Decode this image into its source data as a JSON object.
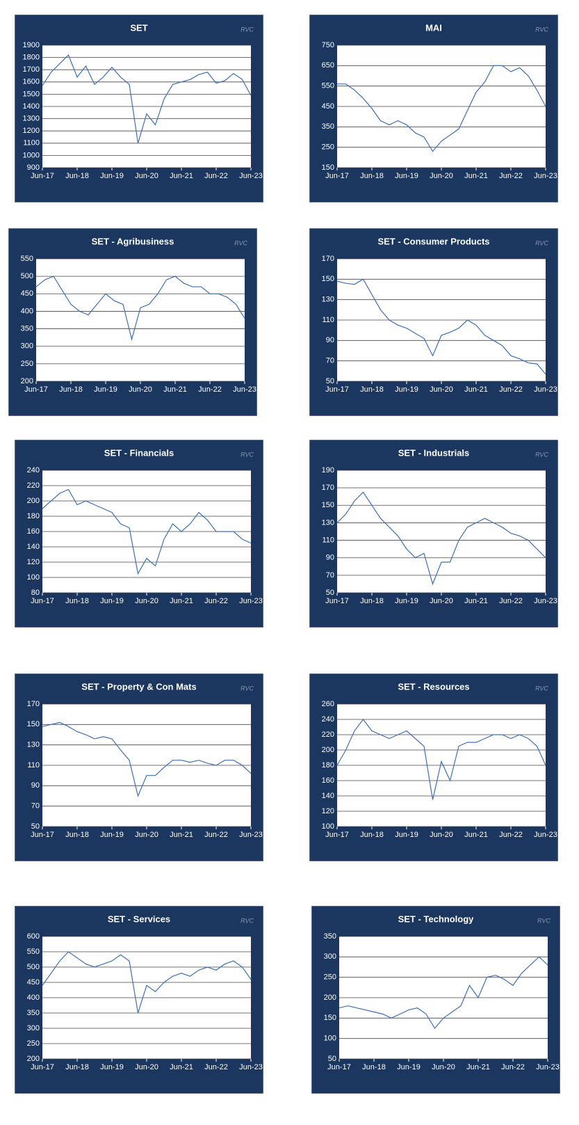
{
  "chart_data": [
    {
      "type": "line",
      "title": "SET",
      "watermark": "RVC",
      "color": "#3c6fb6",
      "grid": true,
      "x": [
        "Jun-17",
        "Sep-17",
        "Dec-17",
        "Mar-18",
        "Jun-18",
        "Sep-18",
        "Dec-18",
        "Mar-19",
        "Jun-19",
        "Sep-19",
        "Dec-19",
        "Mar-20",
        "Jun-20",
        "Sep-20",
        "Dec-20",
        "Mar-21",
        "Jun-21",
        "Sep-21",
        "Dec-21",
        "Mar-22",
        "Jun-22",
        "Sep-22",
        "Dec-22",
        "Mar-23",
        "Jun-23"
      ],
      "xticks": [
        "Jun-17",
        "Jun-18",
        "Jun-19",
        "Jun-20",
        "Jun-21",
        "Jun-22",
        "Jun-23"
      ],
      "values": [
        1570,
        1680,
        1750,
        1820,
        1640,
        1730,
        1580,
        1640,
        1720,
        1640,
        1580,
        1100,
        1340,
        1250,
        1460,
        1580,
        1600,
        1620,
        1660,
        1680,
        1590,
        1610,
        1670,
        1620,
        1490
      ],
      "ylim": [
        900,
        1900
      ],
      "yticks": [
        900,
        1000,
        1100,
        1200,
        1300,
        1400,
        1500,
        1600,
        1700,
        1800,
        1900
      ]
    },
    {
      "type": "line",
      "title": "MAI",
      "watermark": "RVC",
      "color": "#3c6fb6",
      "grid": true,
      "x": [
        "Jun-17",
        "Sep-17",
        "Dec-17",
        "Mar-18",
        "Jun-18",
        "Sep-18",
        "Dec-18",
        "Mar-19",
        "Jun-19",
        "Sep-19",
        "Dec-19",
        "Mar-20",
        "Jun-20",
        "Sep-20",
        "Dec-20",
        "Mar-21",
        "Jun-21",
        "Sep-21",
        "Dec-21",
        "Mar-22",
        "Jun-22",
        "Sep-22",
        "Dec-22",
        "Mar-23",
        "Jun-23"
      ],
      "xticks": [
        "Jun-17",
        "Jun-18",
        "Jun-19",
        "Jun-20",
        "Jun-21",
        "Jun-22",
        "Jun-23"
      ],
      "values": [
        560,
        560,
        530,
        490,
        440,
        380,
        360,
        380,
        360,
        320,
        300,
        230,
        280,
        310,
        340,
        430,
        520,
        570,
        650,
        650,
        620,
        640,
        600,
        530,
        450
      ],
      "ylim": [
        150,
        750
      ],
      "yticks": [
        150,
        250,
        350,
        450,
        550,
        650,
        750
      ]
    },
    {
      "type": "line",
      "title": "SET - Agribusiness",
      "watermark": "RVC",
      "color": "#3c6fb6",
      "grid": true,
      "x": [
        "Jun-17",
        "Sep-17",
        "Dec-17",
        "Mar-18",
        "Jun-18",
        "Sep-18",
        "Dec-18",
        "Mar-19",
        "Jun-19",
        "Sep-19",
        "Dec-19",
        "Mar-20",
        "Jun-20",
        "Sep-20",
        "Dec-20",
        "Mar-21",
        "Jun-21",
        "Sep-21",
        "Dec-21",
        "Mar-22",
        "Jun-22",
        "Sep-22",
        "Dec-22",
        "Mar-23",
        "Jun-23"
      ],
      "xticks": [
        "Jun-17",
        "Jun-18",
        "Jun-19",
        "Jun-20",
        "Jun-21",
        "Jun-22",
        "Jun-23"
      ],
      "values": [
        470,
        490,
        500,
        460,
        420,
        400,
        390,
        420,
        450,
        430,
        420,
        320,
        410,
        420,
        450,
        490,
        500,
        480,
        470,
        470,
        450,
        450,
        440,
        420,
        380
      ],
      "ylim": [
        200,
        550
      ],
      "yticks": [
        200,
        250,
        300,
        350,
        400,
        450,
        500,
        550
      ]
    },
    {
      "type": "line",
      "title": "SET - Consumer Products",
      "watermark": "RVC",
      "color": "#3c6fb6",
      "grid": true,
      "x": [
        "Jun-17",
        "Sep-17",
        "Dec-17",
        "Mar-18",
        "Jun-18",
        "Sep-18",
        "Dec-18",
        "Mar-19",
        "Jun-19",
        "Sep-19",
        "Dec-19",
        "Mar-20",
        "Jun-20",
        "Sep-20",
        "Dec-20",
        "Mar-21",
        "Jun-21",
        "Sep-21",
        "Dec-21",
        "Mar-22",
        "Jun-22",
        "Sep-22",
        "Dec-22",
        "Mar-23",
        "Jun-23"
      ],
      "xticks": [
        "Jun-17",
        "Jun-18",
        "Jun-19",
        "Jun-20",
        "Jun-21",
        "Jun-22",
        "Jun-23"
      ],
      "values": [
        148,
        146,
        145,
        150,
        135,
        120,
        110,
        105,
        102,
        97,
        92,
        75,
        95,
        98,
        102,
        110,
        105,
        95,
        90,
        85,
        75,
        72,
        68,
        67,
        57
      ],
      "ylim": [
        50,
        170
      ],
      "yticks": [
        50,
        70,
        90,
        110,
        130,
        150,
        170
      ]
    },
    {
      "type": "line",
      "title": "SET - Financials",
      "watermark": "RVC",
      "color": "#3c6fb6",
      "grid": true,
      "x": [
        "Jun-17",
        "Sep-17",
        "Dec-17",
        "Mar-18",
        "Jun-18",
        "Sep-18",
        "Dec-18",
        "Mar-19",
        "Jun-19",
        "Sep-19",
        "Dec-19",
        "Mar-20",
        "Jun-20",
        "Sep-20",
        "Dec-20",
        "Mar-21",
        "Jun-21",
        "Sep-21",
        "Dec-21",
        "Mar-22",
        "Jun-22",
        "Sep-22",
        "Dec-22",
        "Mar-23",
        "Jun-23"
      ],
      "xticks": [
        "Jun-17",
        "Jun-18",
        "Jun-19",
        "Jun-20",
        "Jun-21",
        "Jun-22",
        "Jun-23"
      ],
      "values": [
        190,
        200,
        210,
        215,
        195,
        200,
        195,
        190,
        185,
        170,
        165,
        105,
        125,
        115,
        150,
        170,
        160,
        170,
        185,
        175,
        160,
        160,
        160,
        150,
        145
      ],
      "ylim": [
        80,
        240
      ],
      "yticks": [
        80,
        100,
        120,
        140,
        160,
        180,
        200,
        220,
        240
      ]
    },
    {
      "type": "line",
      "title": "SET - Industrials",
      "watermark": "RVC",
      "color": "#3c6fb6",
      "grid": true,
      "x": [
        "Jun-17",
        "Sep-17",
        "Dec-17",
        "Mar-18",
        "Jun-18",
        "Sep-18",
        "Dec-18",
        "Mar-19",
        "Jun-19",
        "Sep-19",
        "Dec-19",
        "Mar-20",
        "Jun-20",
        "Sep-20",
        "Dec-20",
        "Mar-21",
        "Jun-21",
        "Sep-21",
        "Dec-21",
        "Mar-22",
        "Jun-22",
        "Sep-22",
        "Dec-22",
        "Mar-23",
        "Jun-23"
      ],
      "xticks": [
        "Jun-17",
        "Jun-18",
        "Jun-19",
        "Jun-20",
        "Jun-21",
        "Jun-22",
        "Jun-23"
      ],
      "values": [
        130,
        140,
        155,
        165,
        150,
        135,
        125,
        115,
        100,
        90,
        95,
        60,
        85,
        85,
        110,
        125,
        130,
        135,
        130,
        125,
        118,
        115,
        110,
        100,
        90
      ],
      "ylim": [
        50,
        190
      ],
      "yticks": [
        50,
        70,
        90,
        110,
        130,
        150,
        170,
        190
      ]
    },
    {
      "type": "line",
      "title": "SET - Property & Con Mats",
      "watermark": "RVC",
      "color": "#3c6fb6",
      "grid": true,
      "x": [
        "Jun-17",
        "Sep-17",
        "Dec-17",
        "Mar-18",
        "Jun-18",
        "Sep-18",
        "Dec-18",
        "Mar-19",
        "Jun-19",
        "Sep-19",
        "Dec-19",
        "Mar-20",
        "Jun-20",
        "Sep-20",
        "Dec-20",
        "Mar-21",
        "Jun-21",
        "Sep-21",
        "Dec-21",
        "Mar-22",
        "Jun-22",
        "Sep-22",
        "Dec-22",
        "Mar-23",
        "Jun-23"
      ],
      "xticks": [
        "Jun-17",
        "Jun-18",
        "Jun-19",
        "Jun-20",
        "Jun-21",
        "Jun-22",
        "Jun-23"
      ],
      "values": [
        148,
        150,
        152,
        148,
        143,
        140,
        136,
        138,
        136,
        125,
        115,
        80,
        100,
        100,
        108,
        115,
        115,
        113,
        115,
        112,
        110,
        115,
        115,
        110,
        102
      ],
      "ylim": [
        50,
        170
      ],
      "yticks": [
        50,
        70,
        90,
        110,
        130,
        150,
        170
      ]
    },
    {
      "type": "line",
      "title": "SET - Resources",
      "watermark": "RVC",
      "color": "#3c6fb6",
      "grid": true,
      "x": [
        "Jun-17",
        "Sep-17",
        "Dec-17",
        "Mar-18",
        "Jun-18",
        "Sep-18",
        "Dec-18",
        "Mar-19",
        "Jun-19",
        "Sep-19",
        "Dec-19",
        "Mar-20",
        "Jun-20",
        "Sep-20",
        "Dec-20",
        "Mar-21",
        "Jun-21",
        "Sep-21",
        "Dec-21",
        "Mar-22",
        "Jun-22",
        "Sep-22",
        "Dec-22",
        "Mar-23",
        "Jun-23"
      ],
      "xticks": [
        "Jun-17",
        "Jun-18",
        "Jun-19",
        "Jun-20",
        "Jun-21",
        "Jun-22",
        "Jun-23"
      ],
      "values": [
        180,
        200,
        225,
        240,
        225,
        220,
        215,
        220,
        225,
        215,
        205,
        135,
        185,
        160,
        205,
        210,
        210,
        215,
        220,
        220,
        215,
        220,
        215,
        205,
        180
      ],
      "ylim": [
        100,
        260
      ],
      "yticks": [
        100,
        120,
        140,
        160,
        180,
        200,
        220,
        240,
        260
      ]
    },
    {
      "type": "line",
      "title": "SET - Services",
      "watermark": "RVC",
      "color": "#3c6fb6",
      "grid": true,
      "x": [
        "Jun-17",
        "Sep-17",
        "Dec-17",
        "Mar-18",
        "Jun-18",
        "Sep-18",
        "Dec-18",
        "Mar-19",
        "Jun-19",
        "Sep-19",
        "Dec-19",
        "Mar-20",
        "Jun-20",
        "Sep-20",
        "Dec-20",
        "Mar-21",
        "Jun-21",
        "Sep-21",
        "Dec-21",
        "Mar-22",
        "Jun-22",
        "Sep-22",
        "Dec-22",
        "Mar-23",
        "Jun-23"
      ],
      "xticks": [
        "Jun-17",
        "Jun-18",
        "Jun-19",
        "Jun-20",
        "Jun-21",
        "Jun-22",
        "Jun-23"
      ],
      "values": [
        440,
        480,
        520,
        550,
        530,
        510,
        500,
        510,
        520,
        540,
        520,
        350,
        440,
        420,
        450,
        470,
        480,
        470,
        490,
        500,
        490,
        510,
        520,
        500,
        460
      ],
      "ylim": [
        200,
        600
      ],
      "yticks": [
        200,
        250,
        300,
        350,
        400,
        450,
        500,
        550,
        600
      ]
    },
    {
      "type": "line",
      "title": "SET - Technology",
      "watermark": "RVC",
      "color": "#3c6fb6",
      "grid": true,
      "x": [
        "Jun-17",
        "Sep-17",
        "Dec-17",
        "Mar-18",
        "Jun-18",
        "Sep-18",
        "Dec-18",
        "Mar-19",
        "Jun-19",
        "Sep-19",
        "Dec-19",
        "Mar-20",
        "Jun-20",
        "Sep-20",
        "Dec-20",
        "Mar-21",
        "Jun-21",
        "Sep-21",
        "Dec-21",
        "Mar-22",
        "Jun-22",
        "Sep-22",
        "Dec-22",
        "Mar-23",
        "Jun-23"
      ],
      "xticks": [
        "Jun-17",
        "Jun-18",
        "Jun-19",
        "Jun-20",
        "Jun-21",
        "Jun-22",
        "Jun-23"
      ],
      "values": [
        175,
        180,
        175,
        170,
        165,
        160,
        150,
        160,
        170,
        175,
        160,
        125,
        150,
        165,
        180,
        230,
        200,
        250,
        255,
        245,
        230,
        260,
        280,
        300,
        280
      ],
      "ylim": [
        50,
        350
      ],
      "yticks": [
        50,
        100,
        150,
        200,
        250,
        300,
        350
      ]
    }
  ]
}
